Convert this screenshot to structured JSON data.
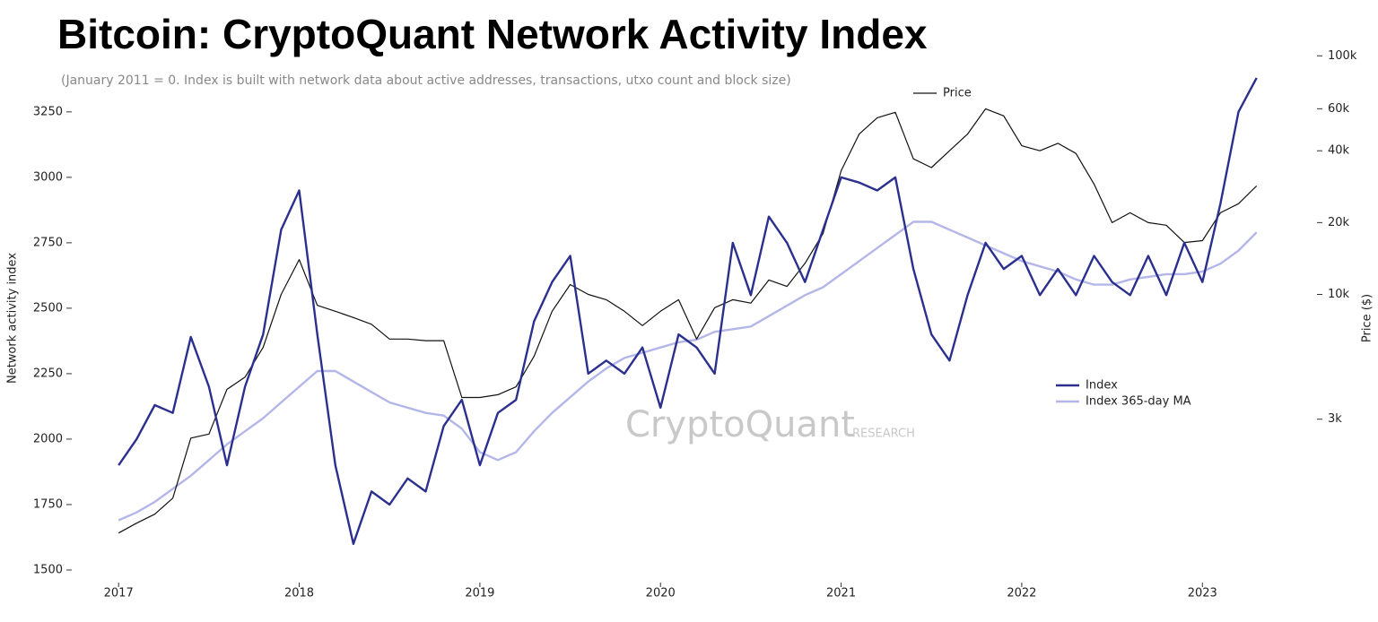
{
  "chart_data": {
    "type": "line",
    "title": "Bitcoin: CryptoQuant Network Activity Index",
    "subtitle": "(January 2011 = 0. Index is built with network data about active addresses, transactions, utxo count and block size)",
    "watermark": "CryptoQuant",
    "watermark_sub": "RESEARCH",
    "y_label": "Network activity index",
    "y2_label": "Price ($)",
    "x": [
      2017.0,
      2017.1,
      2017.2,
      2017.3,
      2017.4,
      2017.5,
      2017.6,
      2017.7,
      2017.8,
      2017.9,
      2018.0,
      2018.1,
      2018.2,
      2018.3,
      2018.4,
      2018.5,
      2018.6,
      2018.7,
      2018.8,
      2018.9,
      2019.0,
      2019.1,
      2019.2,
      2019.3,
      2019.4,
      2019.5,
      2019.6,
      2019.7,
      2019.8,
      2019.9,
      2020.0,
      2020.1,
      2020.2,
      2020.3,
      2020.4,
      2020.5,
      2020.6,
      2020.7,
      2020.8,
      2020.9,
      2021.0,
      2021.1,
      2021.2,
      2021.3,
      2021.4,
      2021.5,
      2021.6,
      2021.7,
      2021.8,
      2021.9,
      2022.0,
      2022.1,
      2022.2,
      2022.3,
      2022.4,
      2022.5,
      2022.6,
      2022.7,
      2022.8,
      2022.9,
      2023.0,
      2023.1,
      2023.2,
      2023.3
    ],
    "xlim": [
      2016.85,
      2023.55
    ],
    "xticks": [
      2017,
      2018,
      2019,
      2020,
      2021,
      2022,
      2023
    ],
    "ylim": [
      1452,
      3472
    ],
    "yticks": [
      1500,
      1750,
      2000,
      2250,
      2500,
      2750,
      3000,
      3250
    ],
    "y2lim": [
      620,
      102000
    ],
    "y2_log": true,
    "y2ticks": [
      {
        "value": 3000,
        "label": "3k"
      },
      {
        "value": 10000,
        "label": "10k"
      },
      {
        "value": 20000,
        "label": "20k"
      },
      {
        "value": 40000,
        "label": "40k"
      },
      {
        "value": 60000,
        "label": "60k"
      },
      {
        "value": 100000,
        "label": "100k"
      }
    ],
    "series": [
      {
        "name": "Price",
        "color": "#111111",
        "axis": "y2",
        "values": [
          1000,
          1100,
          1200,
          1400,
          2500,
          2600,
          4000,
          4500,
          6000,
          10000,
          14000,
          9000,
          8500,
          8000,
          7500,
          6500,
          6500,
          6400,
          6400,
          3700,
          3700,
          3800,
          4100,
          5500,
          8500,
          11000,
          10000,
          9500,
          8500,
          7400,
          8500,
          9500,
          6500,
          8800,
          9500,
          9200,
          11500,
          10800,
          13500,
          18000,
          33000,
          47000,
          55000,
          58000,
          37000,
          34000,
          40000,
          47000,
          60000,
          56000,
          42000,
          40000,
          43000,
          39000,
          29000,
          20000,
          22000,
          20000,
          19500,
          16500,
          16800,
          22000,
          24000,
          28500
        ]
      },
      {
        "name": "Index",
        "color": "#2b2f8e",
        "values": [
          1900,
          2000,
          2130,
          2100,
          2390,
          2200,
          1900,
          2200,
          2400,
          2800,
          2950,
          2400,
          1900,
          1600,
          1800,
          1750,
          1850,
          1800,
          2050,
          2150,
          1900,
          2100,
          2150,
          2450,
          2600,
          2700,
          2250,
          2300,
          2250,
          2350,
          2120,
          2400,
          2350,
          2250,
          2750,
          2550,
          2850,
          2750,
          2600,
          2800,
          3000,
          2980,
          2950,
          3000,
          2650,
          2400,
          2300,
          2550,
          2750,
          2650,
          2700,
          2550,
          2650,
          2550,
          2700,
          2600,
          2550,
          2700,
          2550,
          2750,
          2600,
          2900,
          3250,
          3380
        ]
      },
      {
        "name": "Index 365-day MA",
        "color": "#b3b6e8",
        "values": [
          1690,
          1720,
          1760,
          1810,
          1860,
          1920,
          1980,
          2030,
          2080,
          2140,
          2200,
          2260,
          2260,
          2220,
          2180,
          2140,
          2120,
          2100,
          2090,
          2040,
          1950,
          1920,
          1950,
          2030,
          2100,
          2160,
          2220,
          2270,
          2310,
          2330,
          2350,
          2370,
          2380,
          2410,
          2420,
          2430,
          2470,
          2510,
          2550,
          2580,
          2630,
          2680,
          2730,
          2780,
          2830,
          2830,
          2800,
          2770,
          2740,
          2710,
          2680,
          2660,
          2640,
          2610,
          2590,
          2590,
          2610,
          2620,
          2630,
          2630,
          2640,
          2670,
          2720,
          2790
        ]
      }
    ]
  }
}
